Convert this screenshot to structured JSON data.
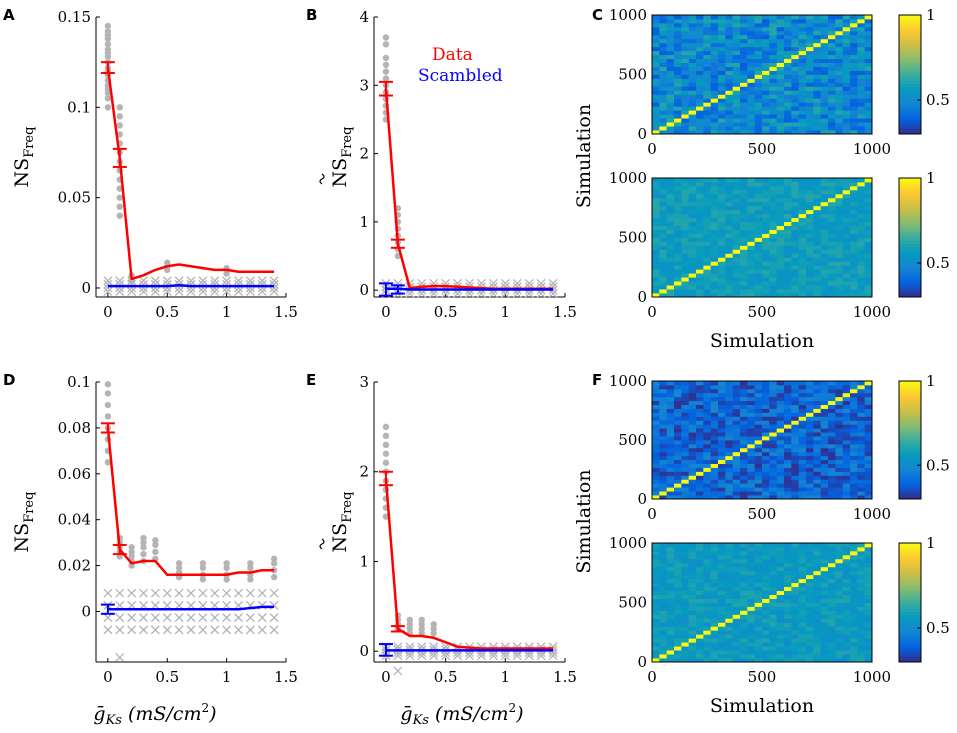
{
  "figure": {
    "panel_labels": [
      "A",
      "B",
      "C",
      "D",
      "E",
      "F"
    ],
    "shared_xlabel": "ḡKs (mS/cm²)",
    "xlabel_parts": {
      "g": "ḡ",
      "sub": "Ks",
      "units": "(mS/cm",
      "sup": "2",
      "close": ")"
    },
    "legend": {
      "data": "Data",
      "scrambled": "Scambled"
    },
    "colors": {
      "data": "#ff0000",
      "scrambled": "#0000ff",
      "samples": "#b4b4b4"
    }
  },
  "chart_data": [
    {
      "panel": "A",
      "type": "line",
      "xlabel": "ḡKs (mS/cm²)",
      "ylabel": "NS_Freq",
      "ylabel_main": "NS",
      "ylabel_sub": "Freq",
      "xlim": [
        -0.1,
        1.5
      ],
      "ylim": [
        -0.005,
        0.15
      ],
      "xticks": [
        0,
        0.5,
        1,
        1.5
      ],
      "xtick_labels": [
        "0",
        "0.5",
        "1",
        "1.5"
      ],
      "yticks": [
        0,
        0.05,
        0.1,
        0.15
      ],
      "ytick_labels": [
        "0",
        "0.05",
        "0.1",
        "0.15"
      ],
      "x": [
        0,
        0.1,
        0.2,
        0.3,
        0.4,
        0.5,
        0.6,
        0.7,
        0.8,
        0.9,
        1.0,
        1.1,
        1.2,
        1.3,
        1.4
      ],
      "series": [
        {
          "name": "Data",
          "values": [
            0.122,
            0.072,
            0.005,
            0.007,
            0.01,
            0.012,
            0.013,
            0.012,
            0.011,
            0.01,
            0.01,
            0.009,
            0.009,
            0.009,
            0.009
          ],
          "errorbars": [
            {
              "x": 0,
              "low": 0.119,
              "high": 0.125
            },
            {
              "x": 0.1,
              "low": 0.067,
              "high": 0.077
            }
          ]
        },
        {
          "name": "Scambled",
          "values": [
            0.001,
            0.001,
            0.001,
            0.001,
            0.001,
            0.001,
            0.0015,
            0.001,
            0.001,
            0.001,
            0.001,
            0.001,
            0.001,
            0.001,
            0.001
          ]
        }
      ],
      "sample_dots": [
        {
          "x": 0,
          "values": [
            0.145,
            0.142,
            0.14,
            0.138,
            0.135,
            0.132,
            0.13,
            0.128,
            0.125,
            0.122,
            0.12,
            0.118,
            0.115,
            0.112,
            0.11,
            0.108,
            0.105,
            0.1
          ]
        },
        {
          "x": 0.1,
          "values": [
            0.1,
            0.095,
            0.09,
            0.085,
            0.08,
            0.075,
            0.07,
            0.065,
            0.06,
            0.055,
            0.05,
            0.045,
            0.04
          ]
        },
        {
          "x": 0.2,
          "values": [
            0.007,
            0.006,
            0.005,
            0.004
          ]
        },
        {
          "x": 0.5,
          "values": [
            0.014,
            0.012,
            0.01
          ]
        },
        {
          "x": 1.0,
          "values": [
            0.011,
            0.01,
            0.008
          ]
        }
      ],
      "sample_crosses": {
        "x": [
          0,
          0.1,
          0.2,
          0.3,
          0.4,
          0.5,
          0.6,
          0.7,
          0.8,
          0.9,
          1.0,
          1.1,
          1.2,
          1.3,
          1.4
        ],
        "low": -0.002,
        "high": 0.004
      },
      "legend": false
    },
    {
      "panel": "B",
      "type": "line",
      "xlabel": "ḡKs (mS/cm²)",
      "ylabel": "ÑS_Freq",
      "ylabel_main": "NS",
      "ylabel_sub": "Freq",
      "xlim": [
        -0.1,
        1.5
      ],
      "ylim": [
        -0.1,
        4
      ],
      "xticks": [
        0,
        0.5,
        1,
        1.5
      ],
      "xtick_labels": [
        "0",
        "0.5",
        "1",
        "1.5"
      ],
      "yticks": [
        0,
        1,
        2,
        3,
        4
      ],
      "ytick_labels": [
        "0",
        "1",
        "2",
        "3",
        "4"
      ],
      "x": [
        0,
        0.1,
        0.2,
        0.3,
        0.4,
        0.5,
        0.6,
        0.7,
        0.8,
        0.9,
        1.0,
        1.1,
        1.2,
        1.3,
        1.4
      ],
      "series": [
        {
          "name": "Data",
          "values": [
            2.95,
            0.68,
            0.03,
            0.05,
            0.06,
            0.06,
            0.05,
            0.04,
            0.03,
            0.02,
            0.02,
            0.02,
            0.02,
            0.02,
            0.02
          ],
          "errorbars": [
            {
              "x": 0,
              "low": 2.85,
              "high": 3.05
            },
            {
              "x": 0.1,
              "low": 0.62,
              "high": 0.74
            }
          ]
        },
        {
          "name": "Scambled",
          "values": [
            0.02,
            0.02,
            0.01,
            0.01,
            0.01,
            0.01,
            0.01,
            0.01,
            0.01,
            0.01,
            0.01,
            0.01,
            0.01,
            0.01,
            0.01
          ],
          "errorbars": [
            {
              "x": 0,
              "low": -0.08,
              "high": 0.1
            },
            {
              "x": 0.1,
              "low": -0.05,
              "high": 0.07
            }
          ]
        }
      ],
      "sample_dots": [
        {
          "x": 0,
          "values": [
            3.7,
            3.6,
            3.4,
            3.3,
            3.2,
            3.1,
            3.0,
            2.9,
            2.8,
            2.7,
            2.6,
            2.5
          ]
        },
        {
          "x": 0.1,
          "values": [
            1.2,
            1.1,
            1.0,
            0.9,
            0.8,
            0.7,
            0.6,
            0.5
          ]
        }
      ],
      "sample_crosses": {
        "x": [
          0,
          0.1,
          0.2,
          0.3,
          0.4,
          0.5,
          0.6,
          0.7,
          0.8,
          0.9,
          1.0,
          1.1,
          1.2,
          1.3,
          1.4
        ],
        "low": -0.05,
        "high": 0.1
      },
      "legend": true
    },
    {
      "panel": "C",
      "type": "heatmap",
      "xlabel": "Simulation",
      "ylabel": "Simulation",
      "xlim": [
        0,
        1000
      ],
      "ylim": [
        0,
        1000
      ],
      "xticks": [
        0,
        500,
        1000
      ],
      "xtick_labels": [
        "0",
        "500",
        "1000"
      ],
      "yticks": [
        0,
        500,
        1000
      ],
      "ytick_labels": [
        "0",
        "500",
        "1000"
      ],
      "grid_size": 30,
      "colorbar": {
        "range": [
          0.3,
          1
        ],
        "ticks": [
          0.5,
          1
        ],
        "tick_labels": [
          "0.5",
          "1"
        ]
      },
      "heatmaps": [
        {
          "which": "top",
          "off_diagonal_mean": 0.5,
          "off_diagonal_spread": 0.12,
          "diagonal": 1,
          "seed": 7
        },
        {
          "which": "bottom",
          "off_diagonal_mean": 0.57,
          "off_diagonal_spread": 0.05,
          "diagonal": 1,
          "seed": 11
        }
      ]
    },
    {
      "panel": "D",
      "type": "line",
      "xlabel": "ḡKs (mS/cm²)",
      "ylabel": "NS_Freq",
      "ylabel_main": "NS",
      "ylabel_sub": "Freq",
      "xlim": [
        -0.1,
        1.5
      ],
      "ylim": [
        -0.022,
        0.1
      ],
      "xticks": [
        0,
        0.5,
        1,
        1.5
      ],
      "xtick_labels": [
        "0",
        "0.5",
        "1",
        "1.5"
      ],
      "yticks": [
        0,
        0.02,
        0.04,
        0.06,
        0.08,
        0.1
      ],
      "ytick_labels": [
        "0",
        "0.02",
        "0.04",
        "0.06",
        "0.08",
        "0.1"
      ],
      "x": [
        0,
        0.1,
        0.2,
        0.3,
        0.4,
        0.5,
        0.6,
        0.7,
        0.8,
        0.9,
        1.0,
        1.1,
        1.2,
        1.3,
        1.4
      ],
      "series": [
        {
          "name": "Data",
          "values": [
            0.08,
            0.027,
            0.021,
            0.022,
            0.022,
            0.016,
            0.016,
            0.016,
            0.016,
            0.016,
            0.016,
            0.017,
            0.017,
            0.018,
            0.018
          ],
          "errorbars": [
            {
              "x": 0,
              "low": 0.078,
              "high": 0.082
            },
            {
              "x": 0.1,
              "low": 0.025,
              "high": 0.029
            }
          ]
        },
        {
          "name": "Scambled",
          "values": [
            0.001,
            0.001,
            0.001,
            0.001,
            0.001,
            0.001,
            0.001,
            0.001,
            0.001,
            0.001,
            0.001,
            0.001,
            0.0015,
            0.002,
            0.002
          ],
          "errorbars": [
            {
              "x": 0,
              "low": -0.001,
              "high": 0.003
            }
          ]
        }
      ],
      "sample_dots": [
        {
          "x": 0,
          "values": [
            0.099,
            0.095,
            0.09,
            0.085,
            0.08,
            0.075,
            0.07,
            0.065
          ]
        },
        {
          "x": 0.1,
          "values": [
            0.032,
            0.03,
            0.028,
            0.026,
            0.024
          ]
        },
        {
          "x": 0.2,
          "values": [
            0.028,
            0.026,
            0.024,
            0.022,
            0.02
          ]
        },
        {
          "x": 0.3,
          "values": [
            0.032,
            0.03,
            0.028,
            0.025,
            0.022
          ]
        },
        {
          "x": 0.4,
          "values": [
            0.031,
            0.029,
            0.026,
            0.023
          ]
        },
        {
          "x": 0.6,
          "values": [
            0.021,
            0.019,
            0.017,
            0.015
          ]
        },
        {
          "x": 0.8,
          "values": [
            0.021,
            0.019,
            0.016,
            0.014
          ]
        },
        {
          "x": 1.0,
          "values": [
            0.021,
            0.019,
            0.016,
            0.014
          ]
        },
        {
          "x": 1.2,
          "values": [
            0.021,
            0.019,
            0.016,
            0.014
          ]
        },
        {
          "x": 1.4,
          "values": [
            0.023,
            0.021,
            0.018,
            0.015
          ]
        }
      ],
      "sample_crosses": {
        "x": [
          0,
          0.1,
          0.2,
          0.3,
          0.4,
          0.5,
          0.6,
          0.7,
          0.8,
          0.9,
          1.0,
          1.1,
          1.2,
          1.3,
          1.4
        ],
        "low": -0.008,
        "high": 0.008,
        "outlier": {
          "x": 0.1,
          "value": -0.02
        }
      },
      "legend": false
    },
    {
      "panel": "E",
      "type": "line",
      "xlabel": "ḡKs (mS/cm²)",
      "ylabel": "ÑS_Freq",
      "ylabel_main": "NS",
      "ylabel_sub": "Freq",
      "xlim": [
        -0.1,
        1.5
      ],
      "ylim": [
        -0.12,
        3
      ],
      "xticks": [
        0,
        0.5,
        1,
        1.5
      ],
      "xtick_labels": [
        "0",
        "0.5",
        "1",
        "1.5"
      ],
      "yticks": [
        0,
        1,
        2,
        3
      ],
      "ytick_labels": [
        "0",
        "1",
        "2",
        "3"
      ],
      "x": [
        0,
        0.1,
        0.2,
        0.3,
        0.4,
        0.5,
        0.6,
        0.7,
        0.8,
        0.9,
        1.0,
        1.1,
        1.2,
        1.3,
        1.4
      ],
      "series": [
        {
          "name": "Data",
          "values": [
            1.92,
            0.25,
            0.17,
            0.17,
            0.15,
            0.1,
            0.05,
            0.04,
            0.03,
            0.03,
            0.03,
            0.03,
            0.03,
            0.03,
            0.03
          ],
          "errorbars": [
            {
              "x": 0,
              "low": 1.85,
              "high": 2.0
            },
            {
              "x": 0.1,
              "low": 0.22,
              "high": 0.28
            }
          ]
        },
        {
          "name": "Scambled",
          "values": [
            0.01,
            0.01,
            0.01,
            0.01,
            0.01,
            0.01,
            0.01,
            0.01,
            0.01,
            0.01,
            0.01,
            0.01,
            0.01,
            0.01,
            0.01
          ],
          "errorbars": [
            {
              "x": 0,
              "low": -0.05,
              "high": 0.08
            }
          ]
        }
      ],
      "sample_dots": [
        {
          "x": 0,
          "values": [
            2.5,
            2.4,
            2.3,
            2.2,
            2.1,
            2.0,
            1.9,
            1.8,
            1.7,
            1.6,
            1.5
          ]
        },
        {
          "x": 0.1,
          "values": [
            0.4,
            0.35,
            0.3,
            0.25
          ]
        },
        {
          "x": 0.2,
          "values": [
            0.35,
            0.3,
            0.25,
            0.2
          ]
        },
        {
          "x": 0.3,
          "values": [
            0.35,
            0.3,
            0.25,
            0.2
          ]
        },
        {
          "x": 0.4,
          "values": [
            0.3,
            0.25,
            0.2
          ]
        }
      ],
      "sample_crosses": {
        "x": [
          0,
          0.1,
          0.2,
          0.3,
          0.4,
          0.5,
          0.6,
          0.7,
          0.8,
          0.9,
          1.0,
          1.1,
          1.2,
          1.3,
          1.4
        ],
        "low": -0.05,
        "high": 0.05,
        "outlier": {
          "x": 0.1,
          "value": -0.22
        }
      },
      "legend": false
    },
    {
      "panel": "F",
      "type": "heatmap",
      "xlabel": "Simulation",
      "ylabel": "Simulation",
      "xlim": [
        0,
        1000
      ],
      "ylim": [
        0,
        1000
      ],
      "xticks": [
        0,
        500,
        1000
      ],
      "xtick_labels": [
        "0",
        "500",
        "1000"
      ],
      "yticks": [
        0,
        500,
        1000
      ],
      "ytick_labels": [
        "0",
        "500",
        "1000"
      ],
      "grid_size": 30,
      "colorbar": {
        "range": [
          0.3,
          1
        ],
        "ticks": [
          0.5,
          1
        ],
        "tick_labels": [
          "0.5",
          "1"
        ]
      },
      "heatmaps": [
        {
          "which": "top",
          "off_diagonal_mean": 0.4,
          "off_diagonal_spread": 0.09,
          "diagonal": 1,
          "seed": 23
        },
        {
          "which": "bottom",
          "off_diagonal_mean": 0.56,
          "off_diagonal_spread": 0.05,
          "diagonal": 1,
          "seed": 31
        }
      ]
    }
  ]
}
